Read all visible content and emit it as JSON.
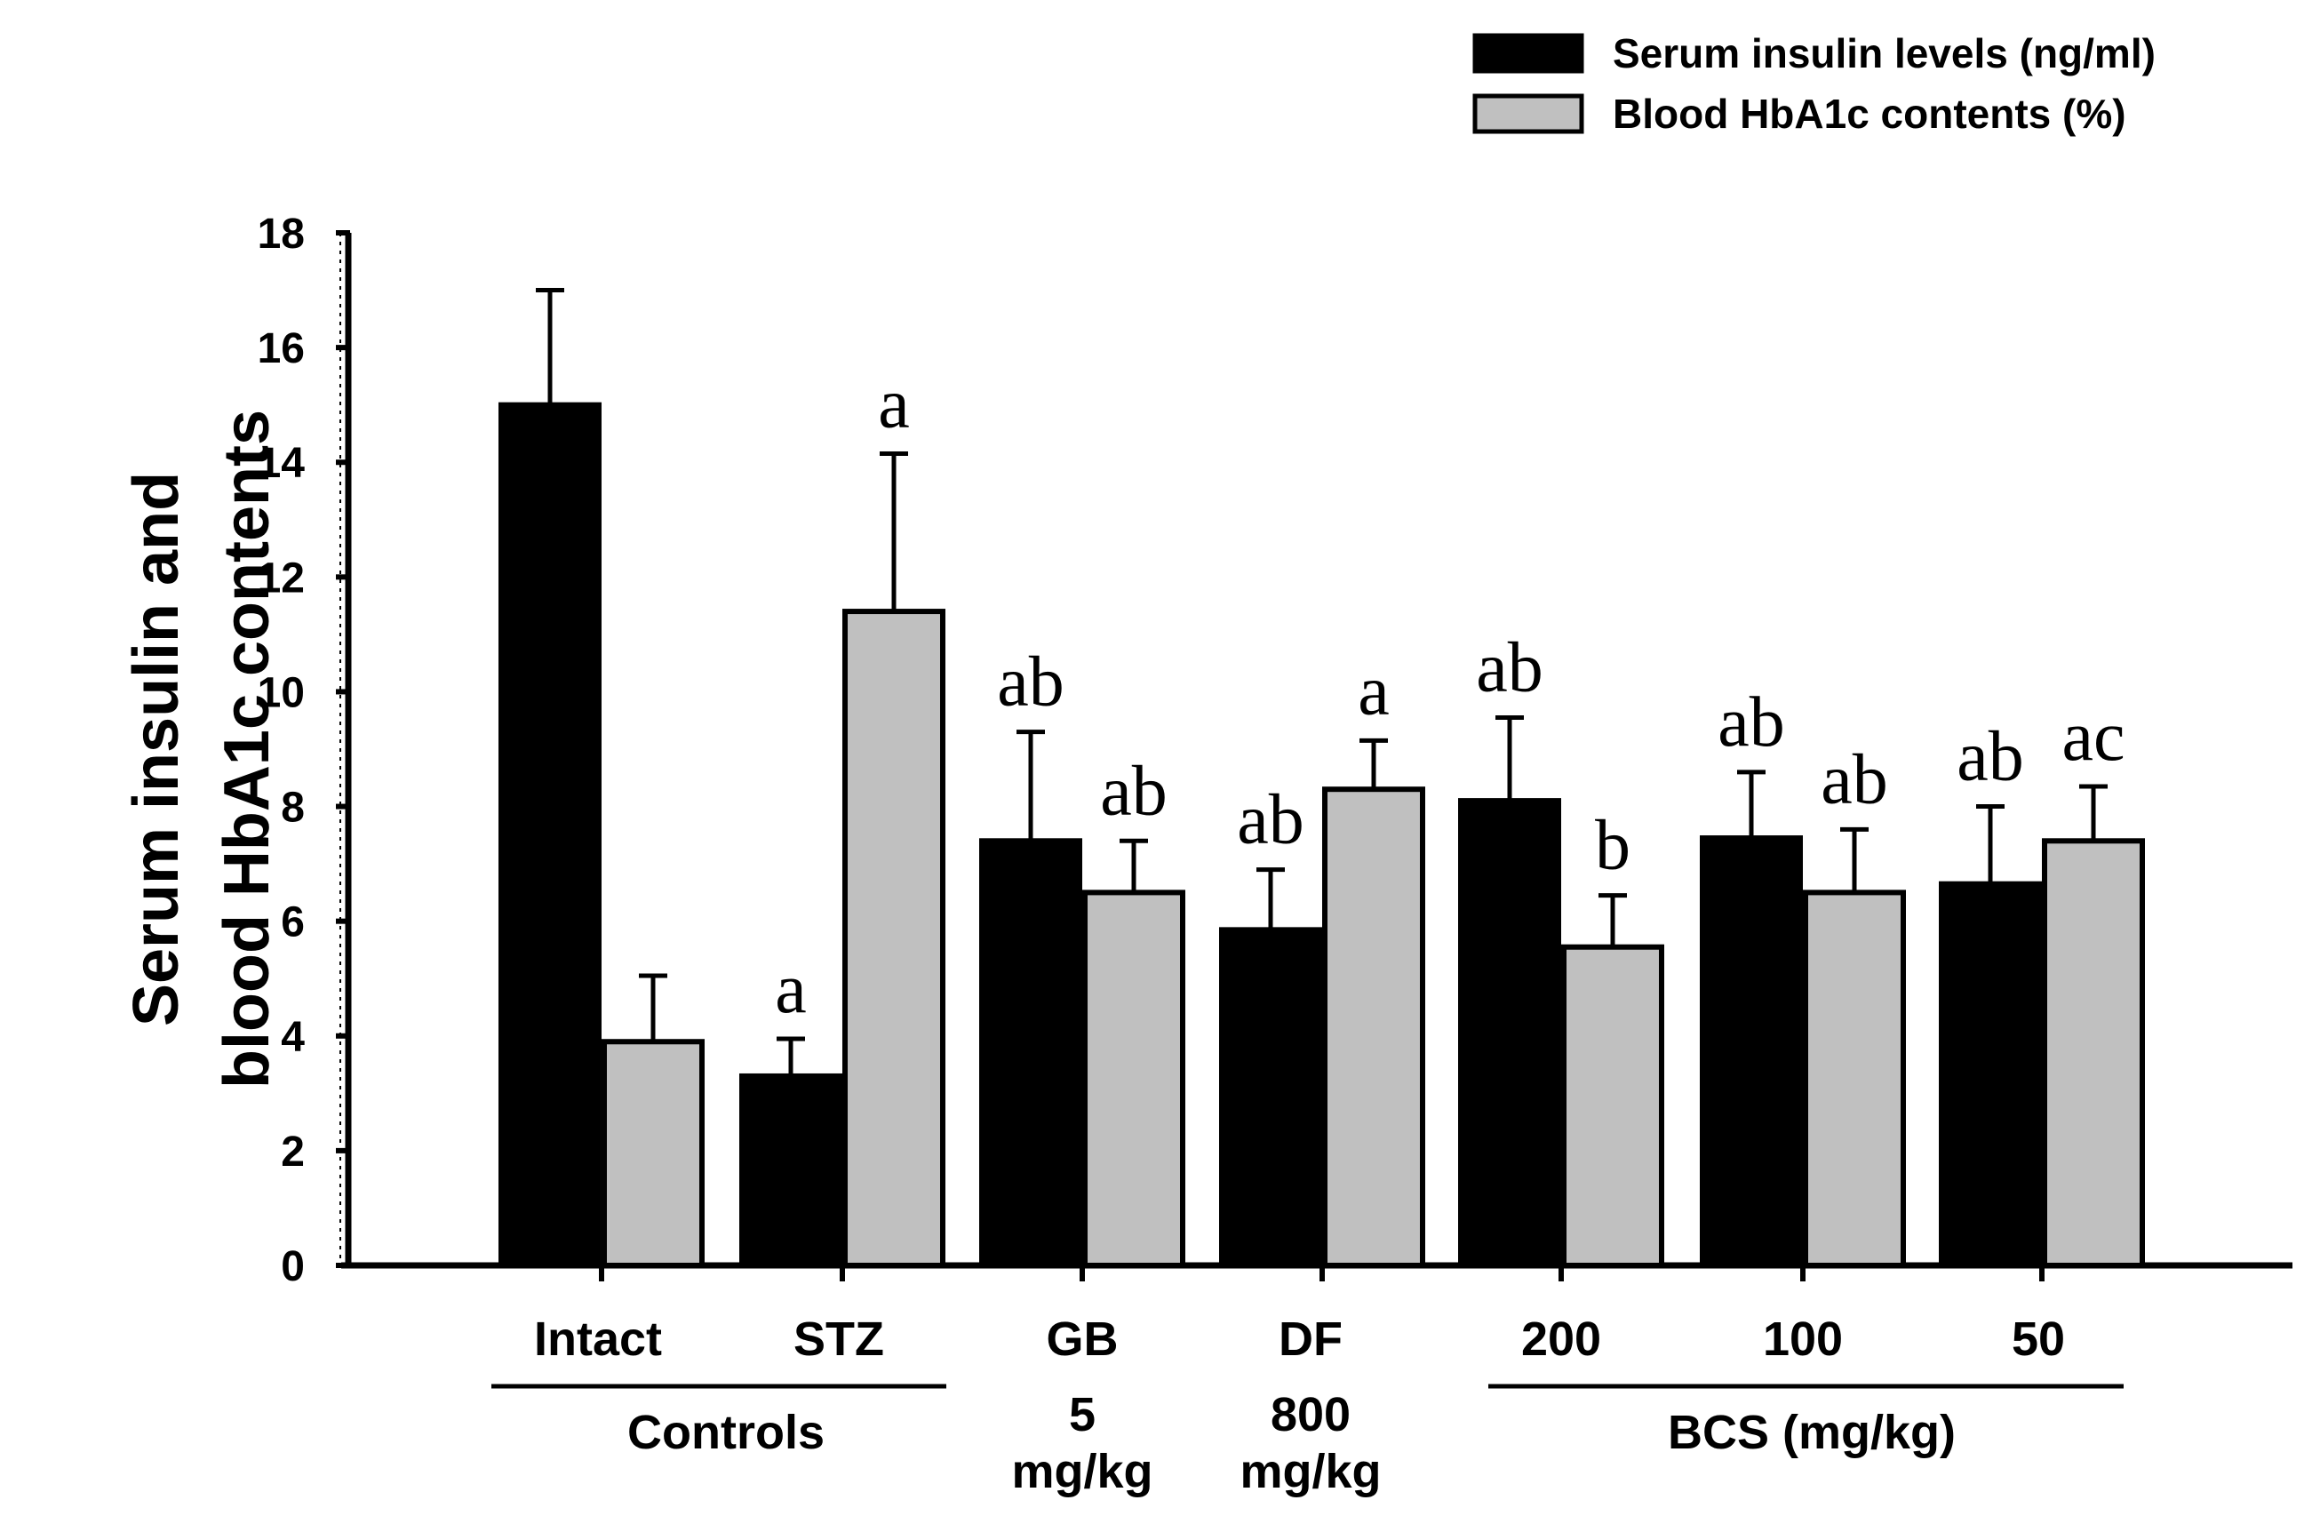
{
  "chart_data": {
    "type": "bar",
    "title": "",
    "xlabel": "",
    "ylabel": "Serum insulin and blood HbA1c contents",
    "ylabel_lines": [
      "Serum insulin and",
      "blood HbA1c contents"
    ],
    "ylim": [
      0,
      18
    ],
    "yticks": [
      0,
      2,
      4,
      6,
      8,
      10,
      12,
      14,
      16,
      18
    ],
    "grid": false,
    "legend_position": "top-right",
    "categories": [
      "Intact",
      "STZ",
      "GB",
      "DF",
      "200",
      "100",
      "50"
    ],
    "category_sublabels": [
      "",
      "",
      "5\nmg/kg",
      "800\nmg/kg",
      "",
      "",
      ""
    ],
    "groups": [
      {
        "label": "Controls",
        "from": 0,
        "to": 1
      },
      {
        "label": "BCS (mg/kg)",
        "from": 4,
        "to": 6
      }
    ],
    "series": [
      {
        "name": "Serum insulin levels (ng/ml)",
        "color": "#000000",
        "values": [
          15.0,
          3.3,
          7.4,
          5.85,
          8.1,
          7.45,
          6.65
        ],
        "errors": [
          2.0,
          0.65,
          1.9,
          1.05,
          1.45,
          1.15,
          1.35
        ],
        "annotations": [
          "",
          "a",
          "ab",
          "ab",
          "ab",
          "ab",
          "ab"
        ]
      },
      {
        "name": "Blood HbA1c contents (%)",
        "color": "#c0c0c0",
        "values": [
          3.9,
          11.4,
          6.5,
          8.3,
          5.55,
          6.5,
          7.4
        ],
        "errors": [
          1.15,
          2.75,
          0.9,
          0.85,
          0.9,
          1.1,
          0.95
        ],
        "annotations": [
          "",
          "a",
          "ab",
          "a",
          "b",
          "ab",
          "ac"
        ]
      }
    ]
  }
}
